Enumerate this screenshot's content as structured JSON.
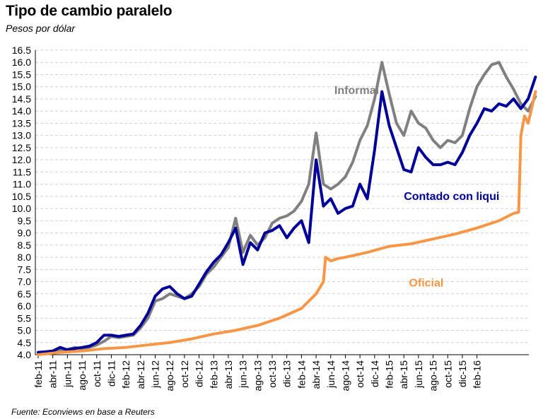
{
  "header": {
    "title": "Tipo de cambio paralelo",
    "subtitle": "Pesos por dólar"
  },
  "footer": {
    "source": "Fuente: Econviews en base a Reuters"
  },
  "chart_data": {
    "type": "line",
    "title": "Tipo de cambio paralelo",
    "subtitle": "Pesos por dólar",
    "xlabel": "",
    "ylabel": "",
    "ylim": [
      4.0,
      16.5
    ],
    "yticks": [
      "4.0",
      "4.5",
      "5.0",
      "5.5",
      "6.0",
      "6.5",
      "7.0",
      "7.5",
      "8.0",
      "8.5",
      "9.0",
      "9.5",
      "10.0",
      "10.5",
      "11.0",
      "11.5",
      "12.0",
      "12.5",
      "13.0",
      "13.5",
      "14.0",
      "14.5",
      "15.0",
      "15.5",
      "16.0",
      "16.5"
    ],
    "xticks": [
      "feb-11",
      "abr-11",
      "jun-11",
      "ago-11",
      "oct-11",
      "dic-11",
      "feb-12",
      "abr-12",
      "jun-12",
      "ago-12",
      "oct-12",
      "dic-12",
      "feb-13",
      "abr-13",
      "jun-13",
      "ago-13",
      "oct-13",
      "dic-13",
      "feb-14",
      "abr-14",
      "jun-14",
      "ago-14",
      "oct-14",
      "dic-14",
      "feb-15",
      "abr-15",
      "jun-15",
      "ago-15",
      "oct-15",
      "dic-15",
      "feb-16"
    ],
    "xlim_months": [
      0,
      62
    ],
    "grid": true,
    "legend": "inline labels",
    "series": [
      {
        "name": "Informal",
        "color": "#808080",
        "points": [
          [
            0,
            4.05
          ],
          [
            1,
            4.1
          ],
          [
            2,
            4.12
          ],
          [
            3,
            4.18
          ],
          [
            4,
            4.22
          ],
          [
            5,
            4.3
          ],
          [
            6,
            4.25
          ],
          [
            7,
            4.3
          ],
          [
            8,
            4.4
          ],
          [
            9,
            4.55
          ],
          [
            10,
            4.75
          ],
          [
            11,
            4.7
          ],
          [
            12,
            4.75
          ],
          [
            13,
            4.8
          ],
          [
            14,
            5.1
          ],
          [
            15,
            5.5
          ],
          [
            16,
            6.2
          ],
          [
            17,
            6.3
          ],
          [
            18,
            6.5
          ],
          [
            19,
            6.4
          ],
          [
            20,
            6.3
          ],
          [
            21,
            6.5
          ],
          [
            22,
            6.8
          ],
          [
            23,
            7.3
          ],
          [
            24,
            7.6
          ],
          [
            25,
            8.0
          ],
          [
            26,
            8.4
          ],
          [
            27,
            9.6
          ],
          [
            28,
            8.2
          ],
          [
            29,
            8.9
          ],
          [
            30,
            8.5
          ],
          [
            31,
            8.8
          ],
          [
            32,
            9.4
          ],
          [
            33,
            9.6
          ],
          [
            34,
            9.7
          ],
          [
            35,
            9.9
          ],
          [
            36,
            10.3
          ],
          [
            37,
            11.0
          ],
          [
            38,
            13.1
          ],
          [
            39,
            11.0
          ],
          [
            40,
            10.8
          ],
          [
            41,
            11.0
          ],
          [
            42,
            11.3
          ],
          [
            43,
            11.9
          ],
          [
            44,
            12.8
          ],
          [
            45,
            13.4
          ],
          [
            46,
            14.5
          ],
          [
            47,
            16.0
          ],
          [
            48,
            14.7
          ],
          [
            49,
            13.5
          ],
          [
            50,
            13.0
          ],
          [
            51,
            14.0
          ],
          [
            52,
            13.5
          ],
          [
            53,
            13.3
          ],
          [
            54,
            12.8
          ],
          [
            55,
            12.5
          ],
          [
            56,
            12.8
          ],
          [
            57,
            12.7
          ],
          [
            58,
            13.0
          ],
          [
            59,
            14.1
          ],
          [
            60,
            15.0
          ],
          [
            61,
            15.5
          ],
          [
            62,
            15.9
          ],
          [
            63,
            16.0
          ],
          [
            64,
            15.4
          ],
          [
            65,
            14.9
          ],
          [
            66,
            14.3
          ],
          [
            67,
            14.0
          ],
          [
            68,
            14.6
          ]
        ]
      },
      {
        "name": "Contado con liqui",
        "color": "#000099",
        "points": [
          [
            0,
            4.1
          ],
          [
            1,
            4.12
          ],
          [
            2,
            4.15
          ],
          [
            3,
            4.3
          ],
          [
            4,
            4.2
          ],
          [
            5,
            4.25
          ],
          [
            6,
            4.3
          ],
          [
            7,
            4.35
          ],
          [
            8,
            4.5
          ],
          [
            9,
            4.8
          ],
          [
            10,
            4.8
          ],
          [
            11,
            4.75
          ],
          [
            12,
            4.8
          ],
          [
            13,
            4.85
          ],
          [
            14,
            5.2
          ],
          [
            15,
            5.7
          ],
          [
            16,
            6.4
          ],
          [
            17,
            6.7
          ],
          [
            18,
            6.8
          ],
          [
            19,
            6.5
          ],
          [
            20,
            6.3
          ],
          [
            21,
            6.4
          ],
          [
            22,
            6.9
          ],
          [
            23,
            7.4
          ],
          [
            24,
            7.8
          ],
          [
            25,
            8.1
          ],
          [
            26,
            8.6
          ],
          [
            27,
            9.2
          ],
          [
            28,
            7.7
          ],
          [
            29,
            8.6
          ],
          [
            30,
            8.3
          ],
          [
            31,
            9.0
          ],
          [
            32,
            9.1
          ],
          [
            33,
            9.3
          ],
          [
            34,
            8.8
          ],
          [
            35,
            9.2
          ],
          [
            36,
            9.5
          ],
          [
            37,
            8.6
          ],
          [
            38,
            12.0
          ],
          [
            39,
            10.1
          ],
          [
            40,
            10.4
          ],
          [
            41,
            9.8
          ],
          [
            42,
            10.0
          ],
          [
            43,
            10.1
          ],
          [
            44,
            11.0
          ],
          [
            45,
            10.4
          ],
          [
            46,
            12.4
          ],
          [
            47,
            14.8
          ],
          [
            48,
            13.4
          ],
          [
            49,
            12.5
          ],
          [
            50,
            11.6
          ],
          [
            51,
            11.5
          ],
          [
            52,
            12.5
          ],
          [
            53,
            12.1
          ],
          [
            54,
            11.8
          ],
          [
            55,
            11.8
          ],
          [
            56,
            11.9
          ],
          [
            57,
            11.8
          ],
          [
            58,
            12.3
          ],
          [
            59,
            13.0
          ],
          [
            60,
            13.5
          ],
          [
            61,
            14.1
          ],
          [
            62,
            14.0
          ],
          [
            63,
            14.3
          ],
          [
            64,
            14.2
          ],
          [
            65,
            14.5
          ],
          [
            66,
            14.1
          ],
          [
            67,
            14.5
          ],
          [
            68,
            15.4
          ]
        ]
      },
      {
        "name": "Oficial",
        "color": "#F79646",
        "points": [
          [
            0,
            4.0
          ],
          [
            3,
            4.1
          ],
          [
            6,
            4.15
          ],
          [
            9,
            4.25
          ],
          [
            12,
            4.3
          ],
          [
            15,
            4.4
          ],
          [
            18,
            4.5
          ],
          [
            21,
            4.65
          ],
          [
            24,
            4.85
          ],
          [
            27,
            5.0
          ],
          [
            30,
            5.2
          ],
          [
            33,
            5.5
          ],
          [
            36,
            5.9
          ],
          [
            38,
            6.5
          ],
          [
            39,
            7.0
          ],
          [
            39.3,
            8.0
          ],
          [
            40,
            7.85
          ],
          [
            41,
            7.95
          ],
          [
            42,
            8.0
          ],
          [
            45,
            8.2
          ],
          [
            48,
            8.45
          ],
          [
            51,
            8.55
          ],
          [
            54,
            8.75
          ],
          [
            57,
            8.95
          ],
          [
            60,
            9.2
          ],
          [
            63,
            9.5
          ],
          [
            65,
            9.8
          ],
          [
            65.7,
            9.85
          ],
          [
            66,
            13.0
          ],
          [
            66.5,
            13.8
          ],
          [
            67,
            13.5
          ],
          [
            68,
            14.8
          ]
        ]
      }
    ],
    "annotations": [
      {
        "label": "Informal",
        "color": "#808080"
      },
      {
        "label": "Contado con liqui",
        "color": "#000099"
      },
      {
        "label": "Oficial",
        "color": "#F79646"
      }
    ]
  }
}
